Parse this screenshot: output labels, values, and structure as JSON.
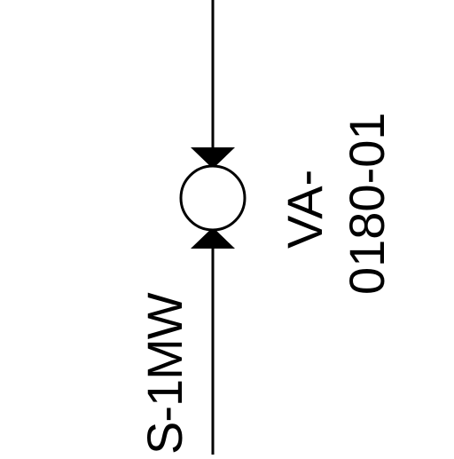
{
  "line_id": "S-1MW",
  "valve": {
    "tag_prefix": "VA-",
    "tag_number": "0180-01"
  },
  "colors": {
    "line": "#000000",
    "background": "#ffffff"
  },
  "icons": {
    "valve": "ball-valve-icon"
  }
}
